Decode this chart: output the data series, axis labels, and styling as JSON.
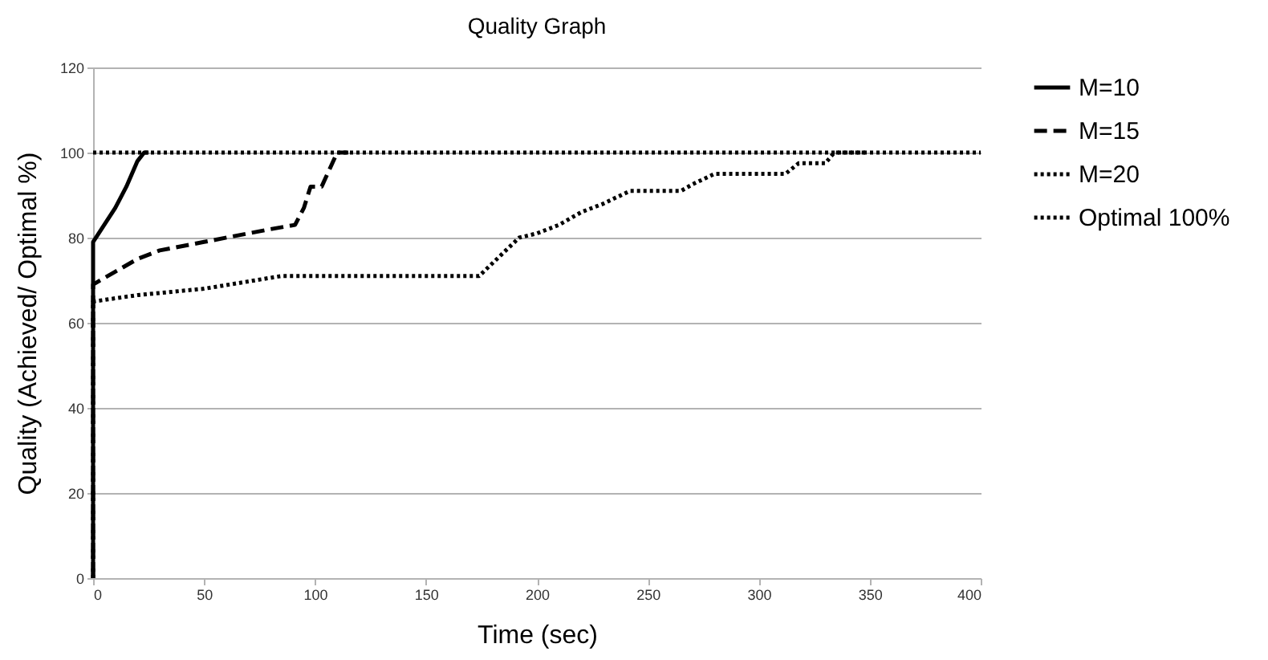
{
  "chart_data": {
    "type": "line",
    "title": "Quality Graph",
    "xlabel": "Time (sec)",
    "ylabel": "Quality (Achieved/ Optimal %)",
    "xlim": [
      0,
      400
    ],
    "xticks": [
      0,
      50,
      100,
      150,
      200,
      250,
      300,
      350,
      400
    ],
    "ylim": [
      0,
      120
    ],
    "yticks": [
      0,
      20,
      40,
      60,
      80,
      100,
      120
    ],
    "grid": "y",
    "legend": "right",
    "marker": "none",
    "series": [
      {
        "name": "M=10",
        "color": "#000000",
        "line_style": "solid",
        "x": [
          0,
          0,
          5,
          10,
          15,
          20,
          23,
          25
        ],
        "values": [
          0,
          79,
          83,
          87,
          92,
          98,
          100,
          100
        ]
      },
      {
        "name": "M=15",
        "color": "#000000",
        "line_style": "dashed",
        "x": [
          0,
          0,
          10,
          20,
          30,
          50,
          70,
          80,
          91,
          95,
          98,
          103,
          110,
          115
        ],
        "values": [
          0,
          69,
          72,
          75,
          77,
          79,
          81,
          82,
          83,
          87,
          92,
          92,
          100,
          100
        ]
      },
      {
        "name": "M=20",
        "color": "#000000",
        "line_style": "dotted",
        "x": [
          0,
          0,
          20,
          50,
          85,
          130,
          174,
          192,
          200,
          210,
          220,
          230,
          242,
          265,
          270,
          280,
          312,
          318,
          330,
          334,
          349
        ],
        "values": [
          0,
          65,
          66.5,
          68,
          71,
          71,
          71,
          80,
          81,
          83,
          86,
          88,
          91,
          91,
          92.5,
          95,
          95,
          97.5,
          97.5,
          100,
          100
        ]
      },
      {
        "name": "Optimal 100%",
        "color": "#000000",
        "line_style": "dotted",
        "x": [
          0,
          400
        ],
        "values": [
          100,
          100
        ]
      }
    ]
  }
}
